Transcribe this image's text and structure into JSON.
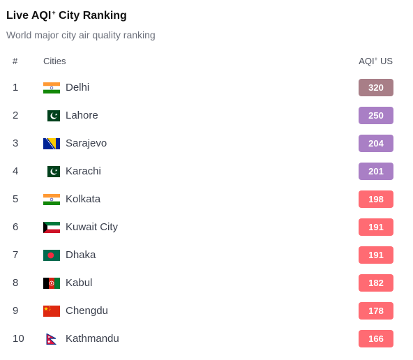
{
  "header": {
    "title_main": "Live AQI",
    "title_sup": "+",
    "title_rest": " City Ranking",
    "subtitle": "World major city air quality ranking"
  },
  "columns": {
    "rank": "#",
    "city": "Cities",
    "aqi_main": "AQI",
    "aqi_sup": "+",
    "aqi_rest": " US"
  },
  "colors": {
    "hazardous": "#a87e87",
    "very_unhealthy": "#a97fc5",
    "unhealthy": "#ff6b73"
  },
  "rows": [
    {
      "rank": "1",
      "city": "Delhi",
      "flag": "india-flag",
      "aqi": "320",
      "level": "hazardous"
    },
    {
      "rank": "2",
      "city": "Lahore",
      "flag": "pakistan-flag",
      "aqi": "250",
      "level": "very_unhealthy"
    },
    {
      "rank": "3",
      "city": "Sarajevo",
      "flag": "bosnia-flag",
      "aqi": "204",
      "level": "very_unhealthy"
    },
    {
      "rank": "4",
      "city": "Karachi",
      "flag": "pakistan-flag",
      "aqi": "201",
      "level": "very_unhealthy"
    },
    {
      "rank": "5",
      "city": "Kolkata",
      "flag": "india-flag",
      "aqi": "198",
      "level": "unhealthy"
    },
    {
      "rank": "6",
      "city": "Kuwait City",
      "flag": "kuwait-flag",
      "aqi": "191",
      "level": "unhealthy"
    },
    {
      "rank": "7",
      "city": "Dhaka",
      "flag": "bangladesh-flag",
      "aqi": "191",
      "level": "unhealthy"
    },
    {
      "rank": "8",
      "city": "Kabul",
      "flag": "afghanistan-flag",
      "aqi": "182",
      "level": "unhealthy"
    },
    {
      "rank": "9",
      "city": "Chengdu",
      "flag": "china-flag",
      "aqi": "178",
      "level": "unhealthy"
    },
    {
      "rank": "10",
      "city": "Kathmandu",
      "flag": "nepal-flag",
      "aqi": "166",
      "level": "unhealthy"
    }
  ]
}
